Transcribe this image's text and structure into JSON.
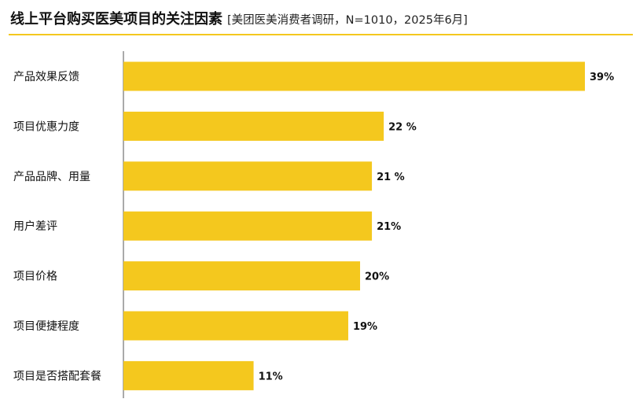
{
  "header": {
    "title": "线上平台购买医美项目的关注因素",
    "subtitle": "[美团医美消费者调研，N=1010，2025年6月]"
  },
  "colors": {
    "bar": "#F4C81E",
    "rule": "#F4C81E",
    "axis": "#555555",
    "text": "#111111"
  },
  "chart_data": {
    "type": "bar",
    "orientation": "horizontal",
    "title": "线上平台购买医美项目的关注因素",
    "subtitle": "[美团医美消费者调研，N=1010，2025年6月]",
    "categories": [
      "产品效果反馈",
      "项目优惠力度",
      "产品品牌、用量",
      "用户差评",
      "项目价格",
      "项目便捷程度",
      "项目是否搭配套餐"
    ],
    "values": [
      39,
      22,
      21,
      21,
      20,
      19,
      11
    ],
    "value_labels": [
      "39%",
      "22 %",
      "21 %",
      "21%",
      "20%",
      "19%",
      "11%"
    ],
    "unit": "%",
    "xlim": [
      0,
      40
    ],
    "grid": false,
    "legend": "none"
  }
}
